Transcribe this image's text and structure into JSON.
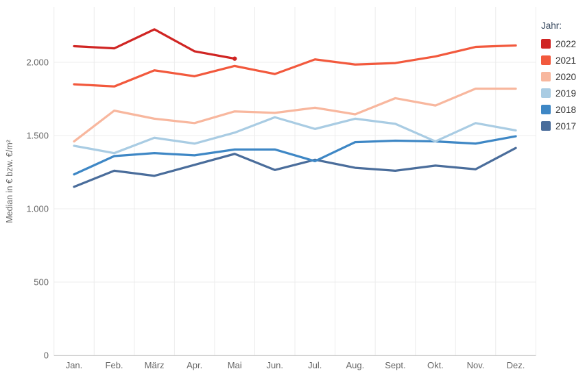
{
  "chart_data": {
    "type": "line",
    "title": "",
    "xlabel": "",
    "ylabel": "Median in € bzw. €/m²",
    "legend_title": "Jahr:",
    "legend_position": "top-right",
    "grid": true,
    "ylim": [
      0,
      2380
    ],
    "categories": [
      "Jan.",
      "Feb.",
      "März",
      "Apr.",
      "Mai",
      "Jun.",
      "Jul.",
      "Aug.",
      "Sept.",
      "Okt.",
      "Nov.",
      "Dez."
    ],
    "yticks": {
      "values": [
        0,
        500,
        1000,
        1500,
        2000
      ],
      "labels": [
        "0",
        "500",
        "1.000",
        "1.500",
        "2.000"
      ]
    },
    "series": [
      {
        "name": "2022",
        "color": "#d02523",
        "end_marker": true,
        "values": [
          2110,
          2095,
          2225,
          2075,
          2025
        ]
      },
      {
        "name": "2021",
        "color": "#f2593d",
        "values": [
          1850,
          1835,
          1945,
          1905,
          1975,
          1920,
          2020,
          1985,
          1995,
          2040,
          2105,
          2115
        ]
      },
      {
        "name": "2020",
        "color": "#f8b79e",
        "values": [
          1460,
          1670,
          1615,
          1585,
          1665,
          1655,
          1690,
          1645,
          1755,
          1705,
          1820,
          1820
        ]
      },
      {
        "name": "2019",
        "color": "#a9cce3",
        "values": [
          1430,
          1380,
          1485,
          1445,
          1520,
          1625,
          1545,
          1615,
          1580,
          1460,
          1585,
          1535
        ]
      },
      {
        "name": "2018",
        "color": "#3e87c5",
        "values": [
          1235,
          1360,
          1380,
          1365,
          1405,
          1405,
          1325,
          1455,
          1465,
          1460,
          1445,
          1495
        ]
      },
      {
        "name": "2017",
        "color": "#4a6d9b",
        "values": [
          1150,
          1260,
          1225,
          1300,
          1375,
          1265,
          1335,
          1280,
          1260,
          1295,
          1270,
          1415
        ]
      }
    ],
    "colors": {
      "grid": "#ececec",
      "axis_line": "#cccccc",
      "tick_text": "#666666",
      "legend_text": "#333333",
      "background": "#ffffff"
    }
  }
}
